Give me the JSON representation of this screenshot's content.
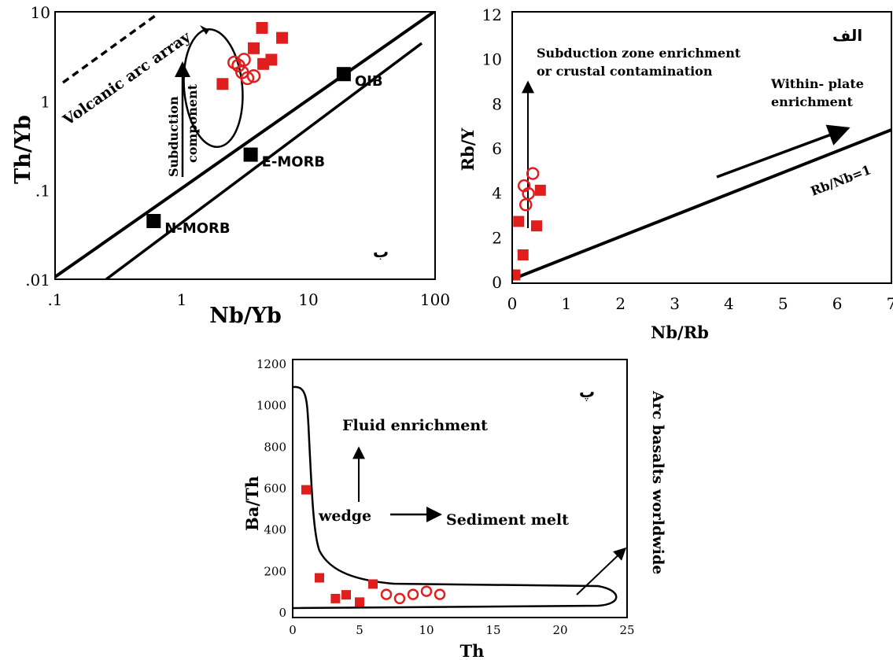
{
  "colors": {
    "sample_red": "#e11e1e",
    "reference_black": "#000000"
  },
  "chart_data": [
    {
      "id": "nb-yb-th-yb",
      "type": "scatter",
      "panel_label": "ب",
      "xlabel": "Nb/Yb",
      "ylabel": "Th/Yb",
      "xscale": "log",
      "yscale": "log",
      "xlim": [
        0.1,
        100
      ],
      "ylim": [
        0.01,
        10
      ],
      "xticks": [
        ".1",
        "1",
        "10",
        "100"
      ],
      "yticks": [
        ".01",
        ".1",
        "1",
        "10"
      ],
      "annotations": {
        "arc_array": "Volcanic arc array",
        "subduction_1": "Subduction",
        "subduction_2": "component"
      },
      "reference_points": [
        {
          "label": "N-MORB",
          "x": 0.6,
          "y": 0.045
        },
        {
          "label": "E-MORB",
          "x": 3.5,
          "y": 0.25
        },
        {
          "label": "OIB",
          "x": 19,
          "y": 2.0
        }
      ],
      "series": [
        {
          "marker": "square",
          "points": [
            [
              2.1,
              1.55
            ],
            [
              3.7,
              3.9
            ],
            [
              4.3,
              6.6
            ],
            [
              4.4,
              2.6
            ],
            [
              5.1,
              2.9
            ],
            [
              6.2,
              5.1
            ]
          ]
        },
        {
          "marker": "circle",
          "points": [
            [
              2.8,
              2.5
            ],
            [
              3.1,
              2.9
            ],
            [
              3.0,
              2.1
            ],
            [
              3.3,
              1.8
            ],
            [
              3.7,
              1.9
            ],
            [
              2.6,
              2.7
            ]
          ]
        }
      ]
    },
    {
      "id": "nb-rb-rb-y",
      "type": "scatter",
      "panel_label": "الف",
      "xlabel": "Nb/Rb",
      "ylabel": "Rb/Y",
      "xlim": [
        0,
        7
      ],
      "ylim": [
        0,
        12
      ],
      "xticks": [
        "0",
        "1",
        "2",
        "3",
        "4",
        "5",
        "6",
        "7"
      ],
      "yticks": [
        "0",
        "2",
        "4",
        "6",
        "8",
        "10",
        "12"
      ],
      "annotations": {
        "subduction_1": "Subduction zone enrichment",
        "subduction_2": "or crustal contamination",
        "within_1": "Within- plate",
        "within_2": "enrichment",
        "ratio_line": "Rb/Nb=1"
      },
      "series": [
        {
          "marker": "square",
          "points": [
            [
              0.05,
              0.3
            ],
            [
              0.12,
              2.7
            ],
            [
              0.2,
              1.2
            ],
            [
              0.45,
              2.5
            ],
            [
              0.52,
              4.1
            ]
          ]
        },
        {
          "marker": "circle",
          "points": [
            [
              0.22,
              4.3
            ],
            [
              0.25,
              3.45
            ],
            [
              0.3,
              3.95
            ],
            [
              0.38,
              4.85
            ]
          ]
        }
      ]
    },
    {
      "id": "th-ba-th",
      "type": "scatter",
      "panel_label": "پ",
      "xlabel": "Th",
      "ylabel": "Ba/Th",
      "xlim": [
        0,
        25
      ],
      "ylim": [
        0,
        1200
      ],
      "xticks": [
        "0",
        "5",
        "10",
        "15",
        "20",
        "25"
      ],
      "yticks": [
        "0",
        "200",
        "400",
        "600",
        "800",
        "1000",
        "1200"
      ],
      "annotations": {
        "fluid": "Fluid enrichment",
        "wedge": "wedge",
        "sediment": "Sediment melt",
        "arc_basalts": "Arc basalts worldwide"
      },
      "series": [
        {
          "marker": "square",
          "points": [
            [
              1.0,
              590
            ],
            [
              2.0,
              165
            ],
            [
              3.2,
              65
            ],
            [
              4.0,
              83
            ],
            [
              5.0,
              48
            ],
            [
              6.0,
              135
            ]
          ]
        },
        {
          "marker": "circle",
          "points": [
            [
              7.0,
              85
            ],
            [
              8.0,
              65
            ],
            [
              9.0,
              85
            ],
            [
              10.0,
              100
            ],
            [
              11.0,
              85
            ]
          ]
        }
      ]
    }
  ]
}
